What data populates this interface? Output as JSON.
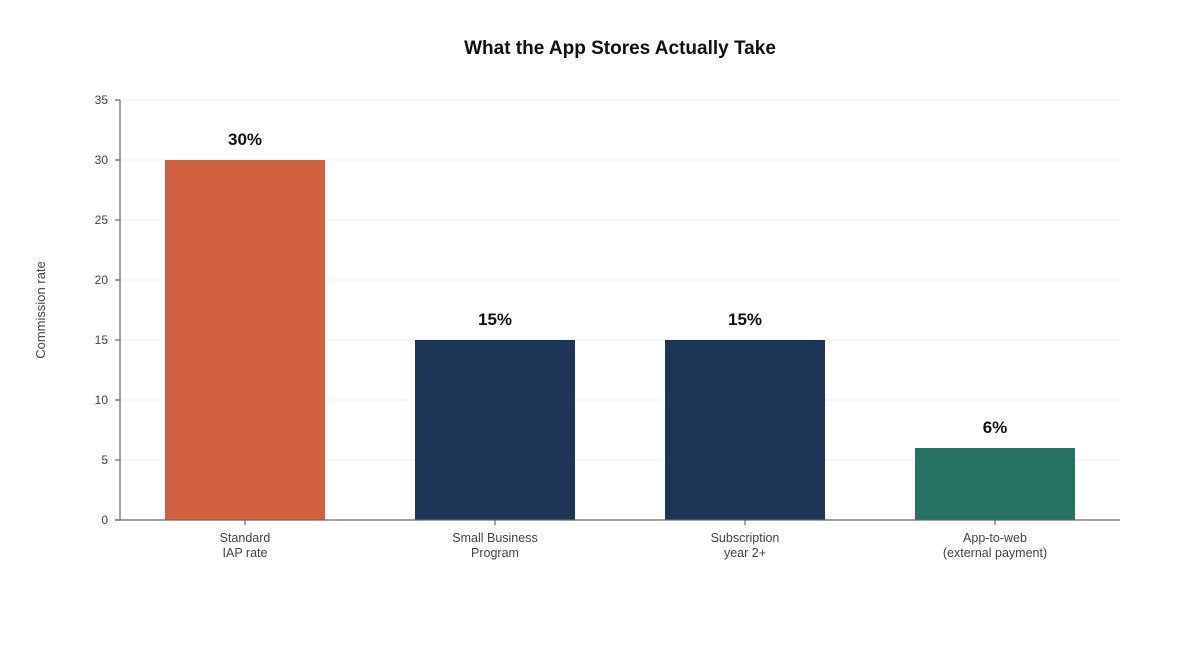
{
  "chart_data": {
    "type": "bar",
    "title": "What the App Stores Actually Take",
    "xlabel": "",
    "ylabel": "Commission rate",
    "ylim": [
      0,
      35
    ],
    "yticks": [
      0,
      5,
      10,
      15,
      20,
      25,
      30,
      35
    ],
    "grid": true,
    "legend": "none",
    "categories": [
      [
        "Standard",
        "IAP rate"
      ],
      [
        "Small Business",
        "Program"
      ],
      [
        "Subscription",
        "year 2+"
      ],
      [
        "App-to-web",
        "(external payment)"
      ]
    ],
    "values": [
      30,
      15,
      15,
      6
    ],
    "data_labels": [
      "30%",
      "15%",
      "15%",
      "6%"
    ],
    "colors": [
      "#d0603e",
      "#1d3557",
      "#1d3557",
      "#237264"
    ]
  }
}
